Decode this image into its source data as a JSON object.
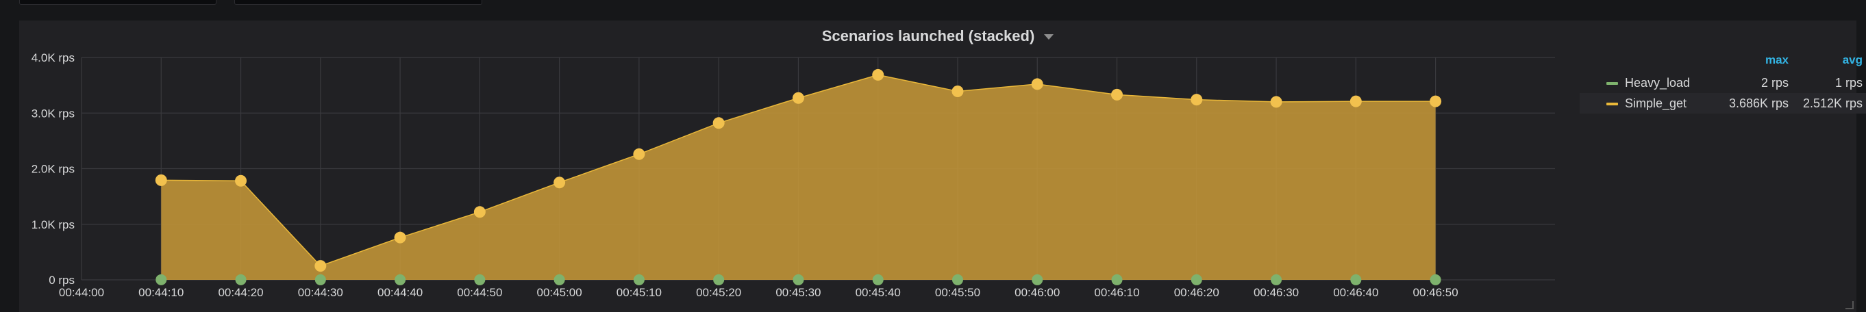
{
  "panel": {
    "title": "Scenarios launched (stacked)"
  },
  "legend": {
    "max_header": "max",
    "avg_header": "avg",
    "items": [
      {
        "name": "Heavy_load",
        "max": "2 rps",
        "avg": "1 rps",
        "color": "#7eb26d"
      },
      {
        "name": "Simple_get",
        "max": "3.686K rps",
        "avg": "2.512K rps",
        "color": "#eab839"
      }
    ]
  },
  "chart_data": {
    "type": "area",
    "title": "Scenarios launched (stacked)",
    "stacked": true,
    "grid": true,
    "legend_position": "right",
    "x": [
      "00:44:10",
      "00:44:20",
      "00:44:30",
      "00:44:40",
      "00:44:50",
      "00:45:00",
      "00:45:10",
      "00:45:20",
      "00:45:30",
      "00:45:40",
      "00:45:50",
      "00:46:00",
      "00:46:10",
      "00:46:20",
      "00:46:30",
      "00:46:40",
      "00:46:50"
    ],
    "x_ticks": [
      "00:44:00",
      "00:44:10",
      "00:44:20",
      "00:44:30",
      "00:44:40",
      "00:44:50",
      "00:45:00",
      "00:45:10",
      "00:45:20",
      "00:45:30",
      "00:45:40",
      "00:45:50",
      "00:46:00",
      "00:46:10",
      "00:46:20",
      "00:46:30",
      "00:46:40",
      "00:46:50"
    ],
    "y_ticks": [
      "0 rps",
      "1.0K rps",
      "2.0K rps",
      "3.0K rps",
      "4.0K rps"
    ],
    "ylim": [
      0,
      4000
    ],
    "series": [
      {
        "name": "Heavy_load",
        "color": "#7eb26d",
        "values": [
          2,
          2,
          1,
          1,
          1,
          1,
          1,
          1,
          1,
          1,
          1,
          1,
          1,
          1,
          1,
          1,
          1
        ]
      },
      {
        "name": "Simple_get",
        "color": "#eab839",
        "values": [
          1790,
          1780,
          250,
          760,
          1220,
          1750,
          2260,
          2820,
          3270,
          3686,
          3390,
          3520,
          3330,
          3240,
          3200,
          3210,
          3210
        ]
      }
    ]
  }
}
